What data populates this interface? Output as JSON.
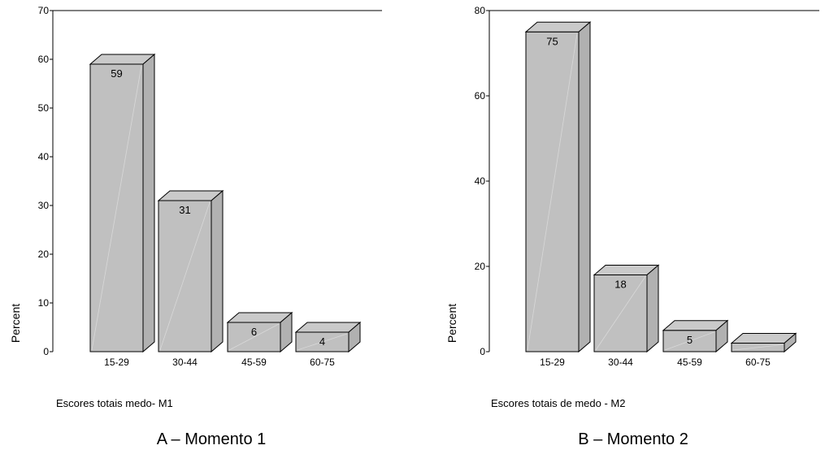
{
  "chart_data": [
    {
      "type": "bar",
      "categories": [
        "15-29",
        "30-44",
        "45-59",
        "60-75"
      ],
      "values": [
        59,
        31,
        6,
        4
      ],
      "data_labels": [
        "59",
        "31",
        "6",
        "4"
      ],
      "ylabel": "Percent",
      "xlabel": "Escores totais medo- M1",
      "caption": "A – Momento 1",
      "ylim": [
        0,
        70
      ],
      "yticks": [
        0,
        10,
        20,
        30,
        40,
        50,
        60,
        70
      ],
      "bar_color": "#c0c0c0",
      "style": "3d"
    },
    {
      "type": "bar",
      "categories": [
        "15-29",
        "30-44",
        "45-59",
        "60-75"
      ],
      "values": [
        75,
        18,
        5,
        2
      ],
      "data_labels": [
        "75",
        "18",
        "5",
        ""
      ],
      "ylabel": "Percent",
      "xlabel": "Escores totais de medo - M2",
      "caption": "B – Momento 2",
      "ylim": [
        0,
        80
      ],
      "yticks": [
        0,
        20,
        40,
        60,
        80
      ],
      "bar_color": "#c0c0c0",
      "style": "3d"
    }
  ]
}
